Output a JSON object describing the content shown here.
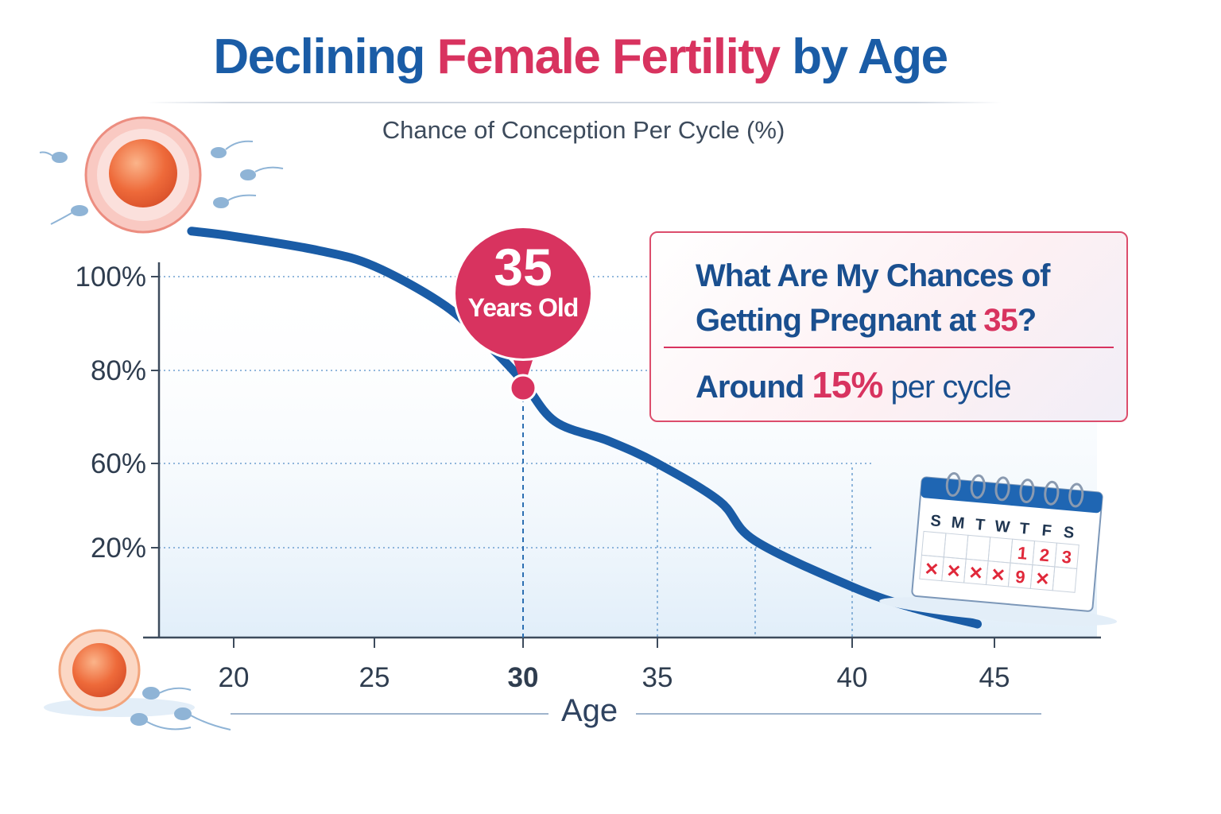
{
  "chart_data": {
    "type": "line",
    "title": {
      "part1": "Declining ",
      "part2": "Female Fertility",
      "part3": " by Age"
    },
    "subtitle": "Chance of Conception Per Cycle (%)",
    "xlabel": "Age",
    "ylabel": "",
    "x_ticks": [
      "20",
      "25",
      "30",
      "35",
      "40",
      "45"
    ],
    "y_ticks": [
      "100%",
      "80%",
      "60%",
      "20%"
    ],
    "highlighted_x_tick": "30",
    "grid": "dotted horizontal and vertical guide lines",
    "series": [
      {
        "x": [
          18.5,
          20,
          23,
          25,
          27.4,
          29,
          30,
          31.2,
          33.2,
          35,
          36.6,
          37.5,
          40,
          42.2,
          44.4
        ],
        "y": [
          109.7,
          108.6,
          105.6,
          102.2,
          93.7,
          84.4,
          77.6,
          69,
          64.8,
          60,
          42,
          23.4,
          11.3,
          6.5,
          3
        ],
        "color": "#1a5ca6"
      }
    ],
    "marker": {
      "number": "35",
      "label": "Years Old",
      "color": "#d8335f"
    },
    "colors": {
      "line": "#1a5ca6",
      "accent": "#d8335f",
      "fill": "#e4f0fa"
    }
  },
  "callout": {
    "question_line1": "What Are My Chances of",
    "question_line2": "Getting Pregnant at ",
    "question_age": "35",
    "question_mark": "?",
    "answer_prefix": "Around ",
    "answer_value": "15%",
    "answer_suffix": " per cycle"
  },
  "calendar": {
    "days": [
      "S",
      "M",
      "T",
      "W",
      "T",
      "F",
      "S"
    ],
    "row1": [
      "",
      "",
      "",
      "",
      "1",
      "2",
      "3"
    ],
    "row2": [
      "✕",
      "✕",
      "✕",
      "✕",
      "9",
      "✕",
      ""
    ]
  },
  "icons": [
    "egg-cell-icon",
    "sperm-icon",
    "calendar-icon"
  ]
}
